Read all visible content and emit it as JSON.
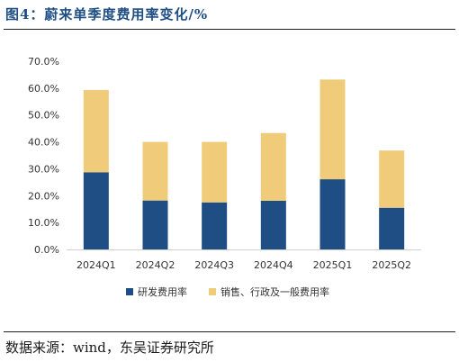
{
  "figure": {
    "title": "图4：蔚来单季度费用率变化/%",
    "source": "数据来源：wind，东吴证券研究所"
  },
  "colors": {
    "rd": "#1f4e84",
    "sga": "#f0cc7a",
    "axis": "#d0d0d0"
  },
  "chart_data": {
    "type": "bar",
    "stacked": true,
    "categories": [
      "2024Q1",
      "2024Q2",
      "2024Q3",
      "2024Q4",
      "2025Q1",
      "2025Q2"
    ],
    "series": [
      {
        "name": "研发费用率",
        "values": [
          28.7,
          18.2,
          17.5,
          18.1,
          26.1,
          15.5
        ]
      },
      {
        "name": "销售、行政及一般费用率",
        "values": [
          30.6,
          21.8,
          22.5,
          25.2,
          37.1,
          21.3
        ]
      }
    ],
    "ylim": [
      0,
      70
    ],
    "yticks": [
      "0.0%",
      "10.0%",
      "20.0%",
      "30.0%",
      "40.0%",
      "50.0%",
      "60.0%",
      "70.0%"
    ],
    "grid": false,
    "legend_position": "bottom"
  }
}
